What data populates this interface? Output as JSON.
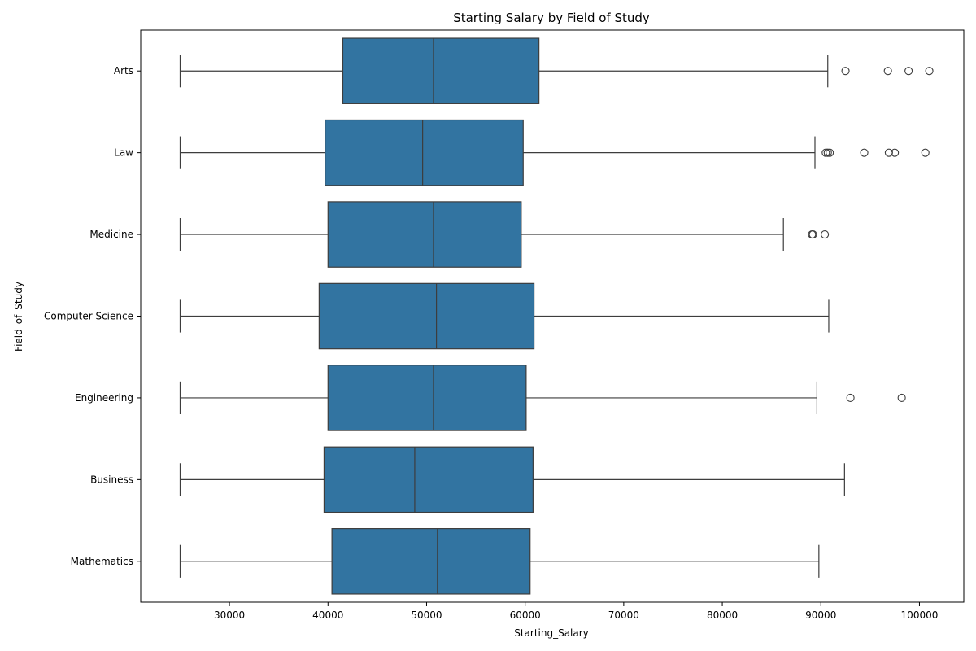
{
  "chart_data": {
    "type": "boxplot",
    "orientation": "horizontal",
    "title": "Starting Salary by Field of Study",
    "xlabel": "Starting_Salary",
    "ylabel": "Field_of_Study",
    "xlim": [
      21000,
      104500
    ],
    "xticks": [
      30000,
      40000,
      50000,
      60000,
      70000,
      80000,
      90000,
      100000
    ],
    "grid": false,
    "colors": {
      "box_fill": "#3274a1",
      "line": "#3d3d3d",
      "axis": "#000000",
      "background": "#ffffff"
    },
    "categories": [
      "Arts",
      "Law",
      "Medicine",
      "Computer Science",
      "Engineering",
      "Business",
      "Mathematics"
    ],
    "boxes": [
      {
        "category": "Arts",
        "whisker_low": 25000,
        "q1": 41500,
        "median": 50700,
        "q3": 61400,
        "whisker_high": 90700,
        "outliers": [
          92500,
          96800,
          98900,
          101000
        ]
      },
      {
        "category": "Law",
        "whisker_low": 25000,
        "q1": 39700,
        "median": 49600,
        "q3": 59800,
        "whisker_high": 89400,
        "outliers": [
          90500,
          90700,
          90900,
          94400,
          96900,
          97500,
          100600
        ]
      },
      {
        "category": "Medicine",
        "whisker_low": 25000,
        "q1": 40000,
        "median": 50700,
        "q3": 59600,
        "whisker_high": 86200,
        "outliers": [
          89100,
          89200,
          90400
        ]
      },
      {
        "category": "Computer Science",
        "whisker_low": 25000,
        "q1": 39100,
        "median": 51000,
        "q3": 60900,
        "whisker_high": 90800,
        "outliers": []
      },
      {
        "category": "Engineering",
        "whisker_low": 25000,
        "q1": 40000,
        "median": 50700,
        "q3": 60100,
        "whisker_high": 89600,
        "outliers": [
          93000,
          98200
        ]
      },
      {
        "category": "Business",
        "whisker_low": 25000,
        "q1": 39600,
        "median": 48800,
        "q3": 60800,
        "whisker_high": 92400,
        "outliers": []
      },
      {
        "category": "Mathematics",
        "whisker_low": 25000,
        "q1": 40400,
        "median": 51100,
        "q3": 60500,
        "whisker_high": 89800,
        "outliers": []
      }
    ]
  }
}
